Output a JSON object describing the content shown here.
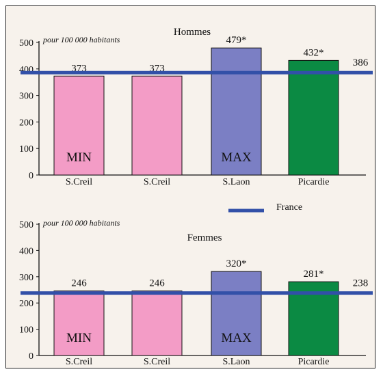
{
  "chart_data": [
    {
      "type": "bar",
      "title": "Hommes",
      "unit_note": "pour 100 000 habitants",
      "categories": [
        "S.Creil",
        "S.Creil",
        "S.Laon",
        "Picardie"
      ],
      "values": [
        373,
        373,
        479,
        432
      ],
      "value_labels": [
        "373",
        "373",
        "479*",
        "432*"
      ],
      "bar_colors": [
        "#f39cc6",
        "#f39cc6",
        "#7b7fc4",
        "#0b8a43"
      ],
      "bar_tags": [
        "MIN",
        "",
        "MAX",
        ""
      ],
      "ylim": [
        0,
        500
      ],
      "yticks": [
        0,
        100,
        200,
        300,
        400,
        500
      ],
      "reference": {
        "value": 386,
        "label": "386",
        "color": "#3250a8"
      }
    },
    {
      "type": "bar",
      "title": "Femmes",
      "unit_note": "pour 100 000 habitants",
      "categories": [
        "S.Creil",
        "S.Creil",
        "S.Laon",
        "Picardie"
      ],
      "values": [
        246,
        246,
        320,
        281
      ],
      "value_labels": [
        "246",
        "246",
        "320*",
        "281*"
      ],
      "bar_colors": [
        "#f39cc6",
        "#f39cc6",
        "#7b7fc4",
        "#0b8a43"
      ],
      "bar_tags": [
        "MIN",
        "",
        "MAX",
        ""
      ],
      "ylim": [
        0,
        500
      ],
      "yticks": [
        0,
        100,
        200,
        300,
        400,
        500
      ],
      "reference": {
        "value": 238,
        "label": "238",
        "color": "#3250a8"
      }
    }
  ],
  "legend": {
    "label": "France",
    "color": "#3250a8"
  }
}
